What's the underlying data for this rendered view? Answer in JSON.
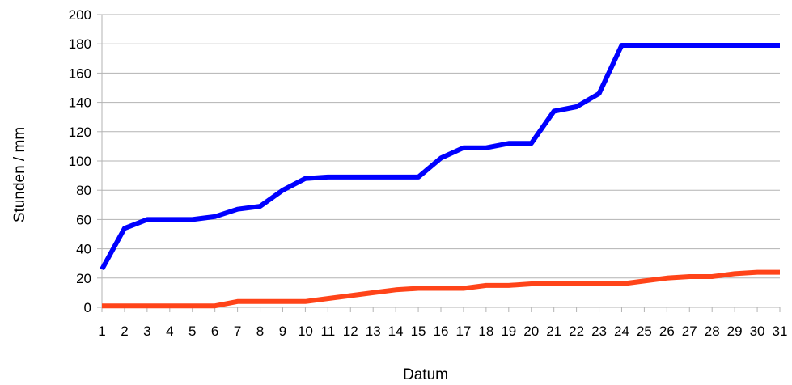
{
  "chart_data": {
    "type": "line",
    "title": "",
    "xlabel": "Datum",
    "ylabel": "Stunden / mm",
    "x": [
      1,
      2,
      3,
      4,
      5,
      6,
      7,
      8,
      9,
      10,
      11,
      12,
      13,
      14,
      15,
      16,
      17,
      18,
      19,
      20,
      21,
      22,
      23,
      24,
      25,
      26,
      27,
      28,
      29,
      30,
      31
    ],
    "x_ticks": [
      "1",
      "2",
      "3",
      "4",
      "5",
      "6",
      "7",
      "8",
      "9",
      "10",
      "11",
      "12",
      "13",
      "14",
      "15",
      "16",
      "17",
      "18",
      "19",
      "20",
      "21",
      "22",
      "23",
      "24",
      "25",
      "26",
      "27",
      "28",
      "29",
      "30",
      "31"
    ],
    "y_ticks": [
      "0",
      "20",
      "40",
      "60",
      "80",
      "100",
      "120",
      "140",
      "160",
      "180",
      "200"
    ],
    "ylim": [
      0,
      200
    ],
    "grid": true,
    "legend": "none",
    "series": [
      {
        "color": "#0000ff",
        "values": [
          26,
          54,
          60,
          60,
          60,
          62,
          67,
          69,
          80,
          88,
          89,
          89,
          89,
          89,
          89,
          102,
          109,
          109,
          112,
          112,
          134,
          137,
          146,
          179,
          179,
          179,
          179,
          179,
          179,
          179,
          179
        ]
      },
      {
        "color": "#ff4419",
        "values": [
          1,
          1,
          1,
          1,
          1,
          1,
          4,
          4,
          4,
          4,
          6,
          8,
          10,
          12,
          13,
          13,
          13,
          15,
          15,
          16,
          16,
          16,
          16,
          16,
          18,
          20,
          21,
          21,
          23,
          24,
          24
        ]
      }
    ]
  }
}
